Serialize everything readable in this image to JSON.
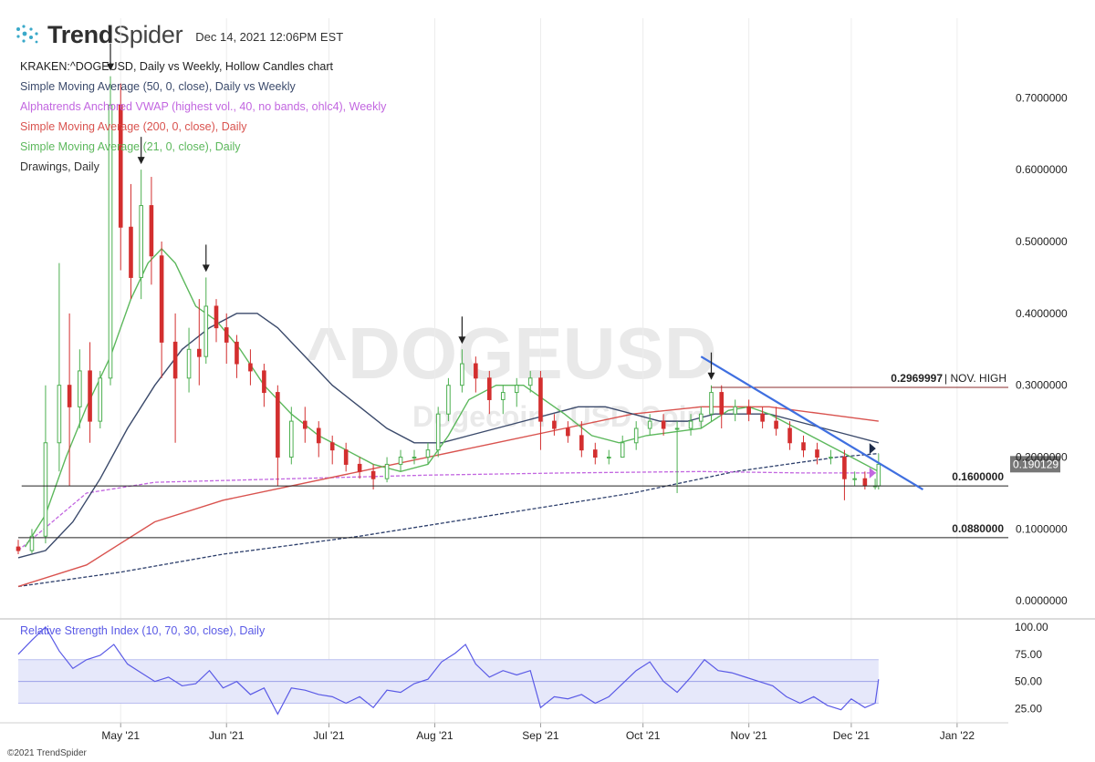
{
  "header": {
    "logo_bold": "Trend",
    "logo_regular": "Spider",
    "timestamp": "Dec 14, 2021 12:06PM EST"
  },
  "legend": [
    {
      "text": "KRAKEN:^DOGEUSD, Daily vs Weekly, Hollow Candles chart",
      "color": "#222222"
    },
    {
      "text": "Simple Moving Average (50, 0, close), Daily vs Weekly",
      "color": "#3b4a6b"
    },
    {
      "text": "Alphatrends Anchored VWAP (highest vol., 40, no bands, ohlc4), Weekly",
      "color": "#c266e0"
    },
    {
      "text": "Simple Moving Average (200, 0, close), Daily",
      "color": "#d9534f"
    },
    {
      "text": "Simple Moving Average (21, 0, close), Daily",
      "color": "#5cb85c"
    },
    {
      "text": "Drawings, Daily",
      "color": "#333333"
    }
  ],
  "watermark": {
    "symbol": "^DOGEUSD",
    "name": "Dogecoin / USD Coin"
  },
  "rsi_label": "Relative Strength Index (10, 70, 30, close), Daily",
  "copyright": "©2021 TrendSpider",
  "colors": {
    "up": "#4caf50",
    "down": "#d32f2f",
    "sma50": "#3b4a6b",
    "sma200": "#d9534f",
    "sma21": "#5cb85c",
    "vwap": "#c266e0",
    "trendline": "#3f6fe0",
    "rsi": "#5a5ae6",
    "rsi_band": "#e6e8fa"
  },
  "chart_data": {
    "type": "candlestick",
    "price_ylim": [
      -0.02,
      0.76
    ],
    "price_ticks": [
      "0.0000000",
      "0.1000000",
      "0.2000000",
      "0.3000000",
      "0.4000000",
      "0.5000000",
      "0.6000000",
      "0.7000000"
    ],
    "price_tick_values": [
      0,
      0.1,
      0.2,
      0.3,
      0.4,
      0.5,
      0.6,
      0.7
    ],
    "x_labels": [
      "May '21",
      "Jun '21",
      "Jul '21",
      "Aug '21",
      "Sep '21",
      "Oct '21",
      "Nov '21",
      "Dec '21",
      "Jan '22"
    ],
    "x_label_days": [
      30,
      61,
      91,
      122,
      153,
      183,
      214,
      244,
      275
    ],
    "day_range": [
      0,
      290
    ],
    "last_day": 252,
    "current_price": {
      "value": 0.190129,
      "label": "0.190129"
    },
    "horizontal_levels": [
      {
        "value": 0.2969997,
        "label": "0.2969997",
        "note": "| NOV. HIGH",
        "start_day": 203,
        "color": "#8b2c2c"
      },
      {
        "value": 0.16,
        "label": "0.1600000",
        "start_day": 1,
        "color": "#222222"
      },
      {
        "value": 0.088,
        "label": "0.0880000",
        "start_day": 0,
        "color": "#222222"
      }
    ],
    "trendline": {
      "from": [
        200,
        0.34
      ],
      "to": [
        265,
        0.155
      ]
    },
    "arrow_days": [
      27,
      36,
      55,
      130,
      203
    ],
    "candles": [
      {
        "d": 0,
        "o": 0.075,
        "h": 0.085,
        "l": 0.065,
        "c": 0.07
      },
      {
        "d": 4,
        "o": 0.07,
        "h": 0.1,
        "l": 0.066,
        "c": 0.09
      },
      {
        "d": 8,
        "o": 0.09,
        "h": 0.3,
        "l": 0.08,
        "c": 0.22
      },
      {
        "d": 12,
        "o": 0.22,
        "h": 0.47,
        "l": 0.18,
        "c": 0.3
      },
      {
        "d": 15,
        "o": 0.3,
        "h": 0.4,
        "l": 0.16,
        "c": 0.27
      },
      {
        "d": 18,
        "o": 0.27,
        "h": 0.35,
        "l": 0.24,
        "c": 0.32
      },
      {
        "d": 21,
        "o": 0.32,
        "h": 0.36,
        "l": 0.22,
        "c": 0.25
      },
      {
        "d": 24,
        "o": 0.25,
        "h": 0.32,
        "l": 0.24,
        "c": 0.31
      },
      {
        "d": 27,
        "o": 0.31,
        "h": 0.73,
        "l": 0.3,
        "c": 0.69
      },
      {
        "d": 30,
        "o": 0.69,
        "h": 0.72,
        "l": 0.46,
        "c": 0.52
      },
      {
        "d": 33,
        "o": 0.52,
        "h": 0.58,
        "l": 0.42,
        "c": 0.45
      },
      {
        "d": 36,
        "o": 0.45,
        "h": 0.6,
        "l": 0.42,
        "c": 0.55
      },
      {
        "d": 39,
        "o": 0.55,
        "h": 0.59,
        "l": 0.44,
        "c": 0.48
      },
      {
        "d": 42,
        "o": 0.48,
        "h": 0.5,
        "l": 0.31,
        "c": 0.36
      },
      {
        "d": 46,
        "o": 0.36,
        "h": 0.4,
        "l": 0.22,
        "c": 0.31
      },
      {
        "d": 50,
        "o": 0.31,
        "h": 0.38,
        "l": 0.29,
        "c": 0.35
      },
      {
        "d": 53,
        "o": 0.35,
        "h": 0.42,
        "l": 0.3,
        "c": 0.34
      },
      {
        "d": 55,
        "o": 0.34,
        "h": 0.45,
        "l": 0.33,
        "c": 0.41
      },
      {
        "d": 58,
        "o": 0.41,
        "h": 0.42,
        "l": 0.36,
        "c": 0.38
      },
      {
        "d": 61,
        "o": 0.38,
        "h": 0.4,
        "l": 0.33,
        "c": 0.36
      },
      {
        "d": 64,
        "o": 0.36,
        "h": 0.37,
        "l": 0.31,
        "c": 0.33
      },
      {
        "d": 68,
        "o": 0.33,
        "h": 0.35,
        "l": 0.3,
        "c": 0.32
      },
      {
        "d": 72,
        "o": 0.32,
        "h": 0.33,
        "l": 0.27,
        "c": 0.29
      },
      {
        "d": 76,
        "o": 0.29,
        "h": 0.3,
        "l": 0.16,
        "c": 0.2
      },
      {
        "d": 80,
        "o": 0.2,
        "h": 0.27,
        "l": 0.19,
        "c": 0.25
      },
      {
        "d": 84,
        "o": 0.25,
        "h": 0.27,
        "l": 0.22,
        "c": 0.24
      },
      {
        "d": 88,
        "o": 0.24,
        "h": 0.25,
        "l": 0.2,
        "c": 0.22
      },
      {
        "d": 92,
        "o": 0.22,
        "h": 0.23,
        "l": 0.19,
        "c": 0.21
      },
      {
        "d": 96,
        "o": 0.21,
        "h": 0.22,
        "l": 0.18,
        "c": 0.19
      },
      {
        "d": 100,
        "o": 0.19,
        "h": 0.2,
        "l": 0.17,
        "c": 0.18
      },
      {
        "d": 104,
        "o": 0.18,
        "h": 0.19,
        "l": 0.155,
        "c": 0.17
      },
      {
        "d": 108,
        "o": 0.17,
        "h": 0.2,
        "l": 0.165,
        "c": 0.19
      },
      {
        "d": 112,
        "o": 0.19,
        "h": 0.21,
        "l": 0.18,
        "c": 0.2
      },
      {
        "d": 116,
        "o": 0.2,
        "h": 0.21,
        "l": 0.19,
        "c": 0.2
      },
      {
        "d": 120,
        "o": 0.2,
        "h": 0.22,
        "l": 0.19,
        "c": 0.21
      },
      {
        "d": 123,
        "o": 0.21,
        "h": 0.27,
        "l": 0.2,
        "c": 0.26
      },
      {
        "d": 126,
        "o": 0.26,
        "h": 0.31,
        "l": 0.25,
        "c": 0.3
      },
      {
        "d": 130,
        "o": 0.3,
        "h": 0.35,
        "l": 0.29,
        "c": 0.33
      },
      {
        "d": 134,
        "o": 0.33,
        "h": 0.34,
        "l": 0.29,
        "c": 0.31
      },
      {
        "d": 138,
        "o": 0.31,
        "h": 0.32,
        "l": 0.26,
        "c": 0.28
      },
      {
        "d": 142,
        "o": 0.28,
        "h": 0.3,
        "l": 0.26,
        "c": 0.29
      },
      {
        "d": 146,
        "o": 0.29,
        "h": 0.31,
        "l": 0.27,
        "c": 0.3
      },
      {
        "d": 150,
        "o": 0.3,
        "h": 0.32,
        "l": 0.29,
        "c": 0.31
      },
      {
        "d": 153,
        "o": 0.31,
        "h": 0.32,
        "l": 0.21,
        "c": 0.25
      },
      {
        "d": 157,
        "o": 0.25,
        "h": 0.26,
        "l": 0.23,
        "c": 0.24
      },
      {
        "d": 161,
        "o": 0.24,
        "h": 0.25,
        "l": 0.22,
        "c": 0.23
      },
      {
        "d": 165,
        "o": 0.23,
        "h": 0.25,
        "l": 0.2,
        "c": 0.21
      },
      {
        "d": 169,
        "o": 0.21,
        "h": 0.22,
        "l": 0.19,
        "c": 0.2
      },
      {
        "d": 173,
        "o": 0.2,
        "h": 0.21,
        "l": 0.19,
        "c": 0.2
      },
      {
        "d": 177,
        "o": 0.2,
        "h": 0.23,
        "l": 0.2,
        "c": 0.22
      },
      {
        "d": 181,
        "o": 0.22,
        "h": 0.25,
        "l": 0.21,
        "c": 0.24
      },
      {
        "d": 185,
        "o": 0.24,
        "h": 0.26,
        "l": 0.23,
        "c": 0.25
      },
      {
        "d": 189,
        "o": 0.25,
        "h": 0.26,
        "l": 0.23,
        "c": 0.24
      },
      {
        "d": 193,
        "o": 0.24,
        "h": 0.25,
        "l": 0.15,
        "c": 0.24
      },
      {
        "d": 197,
        "o": 0.24,
        "h": 0.26,
        "l": 0.23,
        "c": 0.25
      },
      {
        "d": 200,
        "o": 0.25,
        "h": 0.27,
        "l": 0.24,
        "c": 0.26
      },
      {
        "d": 203,
        "o": 0.26,
        "h": 0.3,
        "l": 0.25,
        "c": 0.29
      },
      {
        "d": 206,
        "o": 0.29,
        "h": 0.3,
        "l": 0.24,
        "c": 0.26
      },
      {
        "d": 210,
        "o": 0.26,
        "h": 0.28,
        "l": 0.25,
        "c": 0.27
      },
      {
        "d": 214,
        "o": 0.27,
        "h": 0.28,
        "l": 0.25,
        "c": 0.26
      },
      {
        "d": 218,
        "o": 0.26,
        "h": 0.27,
        "l": 0.24,
        "c": 0.25
      },
      {
        "d": 222,
        "o": 0.25,
        "h": 0.27,
        "l": 0.23,
        "c": 0.24
      },
      {
        "d": 226,
        "o": 0.24,
        "h": 0.25,
        "l": 0.21,
        "c": 0.22
      },
      {
        "d": 230,
        "o": 0.22,
        "h": 0.23,
        "l": 0.2,
        "c": 0.21
      },
      {
        "d": 234,
        "o": 0.21,
        "h": 0.22,
        "l": 0.19,
        "c": 0.2
      },
      {
        "d": 238,
        "o": 0.2,
        "h": 0.21,
        "l": 0.19,
        "c": 0.2
      },
      {
        "d": 242,
        "o": 0.2,
        "h": 0.21,
        "l": 0.14,
        "c": 0.17
      },
      {
        "d": 245,
        "o": 0.17,
        "h": 0.18,
        "l": 0.16,
        "c": 0.17
      },
      {
        "d": 248,
        "o": 0.17,
        "h": 0.18,
        "l": 0.155,
        "c": 0.16
      },
      {
        "d": 251,
        "o": 0.16,
        "h": 0.17,
        "l": 0.155,
        "c": 0.16
      },
      {
        "d": 252,
        "o": 0.16,
        "h": 0.205,
        "l": 0.155,
        "c": 0.19
      }
    ],
    "sma21": [
      [
        2,
        0.075
      ],
      [
        8,
        0.12
      ],
      [
        14,
        0.2
      ],
      [
        20,
        0.27
      ],
      [
        27,
        0.34
      ],
      [
        33,
        0.42
      ],
      [
        38,
        0.47
      ],
      [
        42,
        0.49
      ],
      [
        46,
        0.47
      ],
      [
        52,
        0.41
      ],
      [
        58,
        0.39
      ],
      [
        65,
        0.35
      ],
      [
        72,
        0.3
      ],
      [
        80,
        0.26
      ],
      [
        88,
        0.23
      ],
      [
        96,
        0.21
      ],
      [
        104,
        0.19
      ],
      [
        112,
        0.18
      ],
      [
        120,
        0.19
      ],
      [
        126,
        0.23
      ],
      [
        132,
        0.28
      ],
      [
        140,
        0.3
      ],
      [
        148,
        0.3
      ],
      [
        154,
        0.28
      ],
      [
        160,
        0.26
      ],
      [
        168,
        0.23
      ],
      [
        176,
        0.22
      ],
      [
        184,
        0.23
      ],
      [
        192,
        0.235
      ],
      [
        200,
        0.24
      ],
      [
        208,
        0.265
      ],
      [
        214,
        0.27
      ],
      [
        220,
        0.26
      ],
      [
        228,
        0.24
      ],
      [
        236,
        0.22
      ],
      [
        244,
        0.2
      ],
      [
        252,
        0.18
      ]
    ],
    "sma50": [
      [
        0,
        0.06
      ],
      [
        8,
        0.07
      ],
      [
        16,
        0.11
      ],
      [
        24,
        0.17
      ],
      [
        32,
        0.24
      ],
      [
        40,
        0.3
      ],
      [
        48,
        0.35
      ],
      [
        56,
        0.38
      ],
      [
        64,
        0.4
      ],
      [
        70,
        0.4
      ],
      [
        76,
        0.38
      ],
      [
        84,
        0.34
      ],
      [
        92,
        0.3
      ],
      [
        100,
        0.27
      ],
      [
        108,
        0.24
      ],
      [
        116,
        0.22
      ],
      [
        124,
        0.22
      ],
      [
        132,
        0.23
      ],
      [
        140,
        0.24
      ],
      [
        148,
        0.25
      ],
      [
        156,
        0.26
      ],
      [
        164,
        0.27
      ],
      [
        172,
        0.27
      ],
      [
        180,
        0.26
      ],
      [
        188,
        0.25
      ],
      [
        196,
        0.25
      ],
      [
        204,
        0.26
      ],
      [
        212,
        0.26
      ],
      [
        220,
        0.26
      ],
      [
        228,
        0.25
      ],
      [
        236,
        0.24
      ],
      [
        244,
        0.23
      ],
      [
        252,
        0.22
      ]
    ],
    "sma200": [
      [
        0,
        0.02
      ],
      [
        20,
        0.05
      ],
      [
        40,
        0.11
      ],
      [
        60,
        0.14
      ],
      [
        80,
        0.16
      ],
      [
        100,
        0.18
      ],
      [
        120,
        0.2
      ],
      [
        140,
        0.22
      ],
      [
        160,
        0.24
      ],
      [
        180,
        0.26
      ],
      [
        200,
        0.27
      ],
      [
        220,
        0.27
      ],
      [
        236,
        0.26
      ],
      [
        252,
        0.25
      ]
    ],
    "vwap": [
      [
        0,
        0.07
      ],
      [
        10,
        0.11
      ],
      [
        20,
        0.15
      ],
      [
        40,
        0.165
      ],
      [
        80,
        0.17
      ],
      [
        120,
        0.175
      ],
      [
        160,
        0.178
      ],
      [
        200,
        0.18
      ],
      [
        230,
        0.178
      ],
      [
        252,
        0.178
      ]
    ],
    "base_line": [
      [
        0,
        0.02
      ],
      [
        30,
        0.04
      ],
      [
        60,
        0.065
      ],
      [
        100,
        0.09
      ],
      [
        140,
        0.12
      ],
      [
        180,
        0.15
      ],
      [
        210,
        0.18
      ],
      [
        240,
        0.2
      ],
      [
        252,
        0.205
      ]
    ],
    "rsi": {
      "ylim": [
        12,
        105
      ],
      "ticks": [
        "25.00",
        "50.00",
        "75.00",
        "100.00"
      ],
      "tick_values": [
        25,
        50,
        75,
        100
      ],
      "overbought": 70,
      "oversold": 30,
      "values": [
        [
          0,
          75
        ],
        [
          4,
          88
        ],
        [
          8,
          100
        ],
        [
          12,
          78
        ],
        [
          16,
          62
        ],
        [
          20,
          70
        ],
        [
          24,
          74
        ],
        [
          28,
          84
        ],
        [
          32,
          66
        ],
        [
          36,
          58
        ],
        [
          40,
          50
        ],
        [
          44,
          54
        ],
        [
          48,
          46
        ],
        [
          52,
          48
        ],
        [
          56,
          60
        ],
        [
          60,
          44
        ],
        [
          64,
          50
        ],
        [
          68,
          38
        ],
        [
          72,
          44
        ],
        [
          76,
          20
        ],
        [
          80,
          44
        ],
        [
          84,
          42
        ],
        [
          88,
          38
        ],
        [
          92,
          36
        ],
        [
          96,
          30
        ],
        [
          100,
          36
        ],
        [
          104,
          26
        ],
        [
          108,
          42
        ],
        [
          112,
          40
        ],
        [
          116,
          48
        ],
        [
          120,
          52
        ],
        [
          124,
          68
        ],
        [
          128,
          76
        ],
        [
          131,
          84
        ],
        [
          134,
          66
        ],
        [
          138,
          54
        ],
        [
          142,
          60
        ],
        [
          146,
          56
        ],
        [
          150,
          60
        ],
        [
          153,
          26
        ],
        [
          157,
          36
        ],
        [
          161,
          34
        ],
        [
          165,
          38
        ],
        [
          169,
          30
        ],
        [
          173,
          36
        ],
        [
          177,
          48
        ],
        [
          181,
          60
        ],
        [
          185,
          68
        ],
        [
          189,
          50
        ],
        [
          193,
          40
        ],
        [
          197,
          54
        ],
        [
          201,
          70
        ],
        [
          205,
          60
        ],
        [
          209,
          58
        ],
        [
          213,
          54
        ],
        [
          217,
          50
        ],
        [
          221,
          46
        ],
        [
          225,
          36
        ],
        [
          229,
          30
        ],
        [
          233,
          36
        ],
        [
          237,
          28
        ],
        [
          241,
          24
        ],
        [
          244,
          34
        ],
        [
          248,
          26
        ],
        [
          251,
          30
        ],
        [
          252,
          52
        ]
      ]
    }
  }
}
